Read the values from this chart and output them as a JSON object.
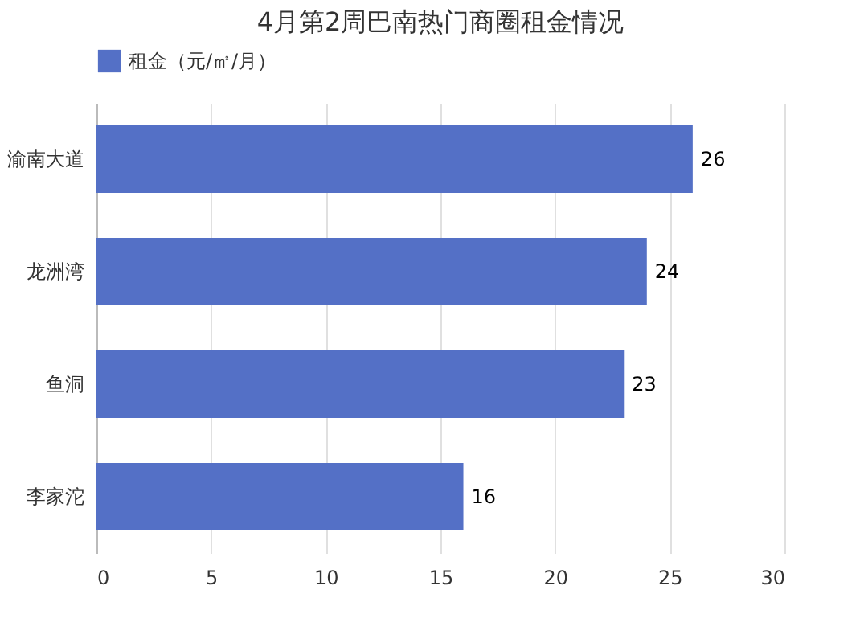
{
  "chart_data": {
    "type": "bar",
    "orientation": "horizontal",
    "title": "4月第2周巴南热门商圈租金情况",
    "categories": [
      "渝南大道",
      "龙洲湾",
      "鱼洞",
      "李家沱"
    ],
    "series": [
      {
        "name": "租金（元/㎡/月）",
        "color": "#5470c6",
        "values": [
          26,
          24,
          23,
          16
        ]
      }
    ],
    "xlim": [
      0,
      30
    ],
    "xticks": [
      0,
      5,
      10,
      15,
      20,
      25,
      30
    ],
    "grid": "x",
    "legend": "top",
    "data_labels": true
  }
}
